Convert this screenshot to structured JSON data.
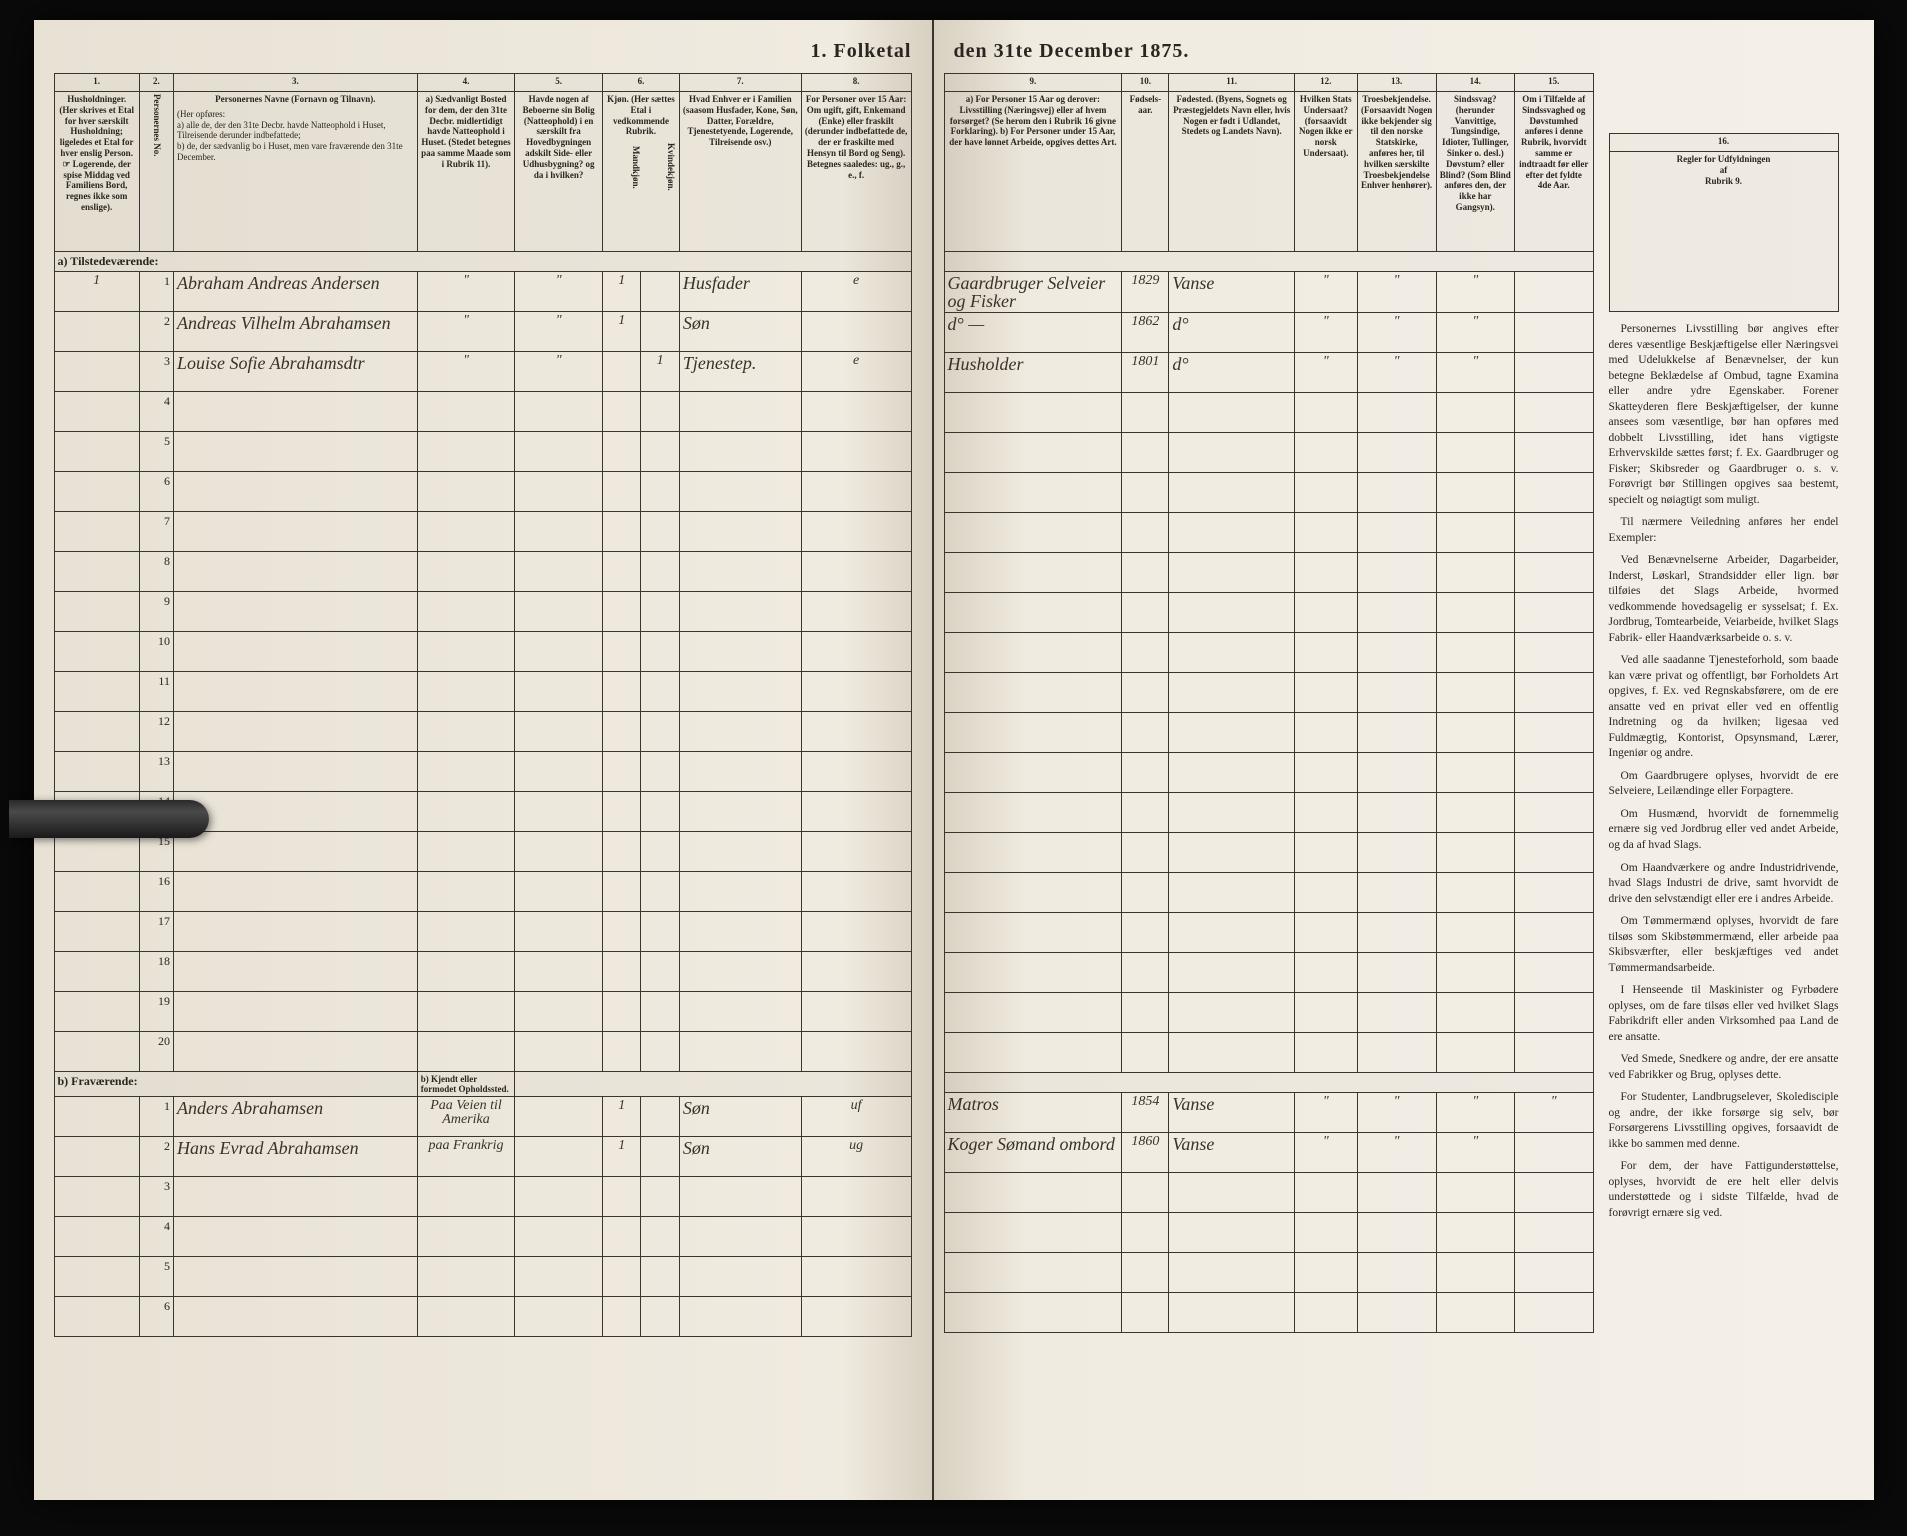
{
  "title_left": "1. Folketal",
  "title_right": "den 31te December 1875.",
  "left_page": {
    "col_numbers": [
      "1.",
      "2.",
      "3.",
      "4.",
      "5.",
      "6.",
      "7.",
      "8."
    ],
    "headers": {
      "c1": "Husholdninger.\n(Her skrives et Etal for hver særskilt Husholdning; ligeledes et Etal for hver enslig Person.\n☞ Logerende, der spise Middag ved Familiens Bord, regnes ikke som enslige).",
      "c2": "Personernes No.",
      "c3_title": "Personernes Navne (Fornavn og Tilnavn).",
      "c3_sub": "(Her opføres:\na) alle de, der den 31te Decbr. havde Natteophold i Huset, Tilreisende derunder indbefattede;\nb) de, der sædvanlig bo i Huset, men vare fraværende den 31te December.",
      "c4": "a) Sædvanligt Bosted for dem, der den 31te Decbr. midlertidigt havde Natteophold i Huset.\n(Stedet betegnes paa samme Maade som i Rubrik 11).",
      "c5": "Havde nogen af Beboerne sin Bolig (Natteophold) i en særskilt fra Hovedbygningen adskilt Side- eller Udhusbygning? og da i hvilken?",
      "c6": "Kjøn.\n(Her sættes Etal i vedkommende Rubrik.",
      "c6a": "Mandkjøn.",
      "c6b": "Kvindekjøn.",
      "c7": "Hvad Enhver er i Familien\n(saasom Husfader, Kone, Søn, Datter, Forældre, Tjenestetyende, Logerende, Tilreisende osv.)",
      "c8": "For Personer over 15 Aar: Om ugift, gift, Enkemand (Enke) eller fraskilt (derunder indbefattede de, der er fraskilte med Hensyn til Bord og Seng).\nBetegnes saaledes:\nug., g., e., f."
    },
    "section_a": "a) Tilstedeværende:",
    "section_b": "b) Fraværende:",
    "section_b_col4": "b) Kjendt eller formodet Opholdssted.",
    "rows_a": [
      {
        "hh": "1",
        "no": "1",
        "name": "Abraham Andreas Andersen",
        "c4": "\"",
        "c5": "\"",
        "m": "1",
        "f": "",
        "fam": "Husfader",
        "civ": "e"
      },
      {
        "hh": "",
        "no": "2",
        "name": "Andreas Vilhelm Abrahamsen",
        "c4": "\"",
        "c5": "\"",
        "m": "1",
        "f": "",
        "fam": "Søn",
        "civ": ""
      },
      {
        "hh": "",
        "no": "3",
        "name": "Louise Sofie Abrahamsdtr",
        "c4": "\"",
        "c5": "\"",
        "m": "",
        "f": "1",
        "fam": "Tjenestep.",
        "civ": "e"
      }
    ],
    "blank_rows_a": [
      4,
      5,
      6,
      7,
      8,
      9,
      10,
      11,
      12,
      13,
      14,
      15,
      16,
      17,
      18,
      19,
      20
    ],
    "rows_b": [
      {
        "hh": "",
        "no": "1",
        "name": "Anders Abrahamsen",
        "c4": "Paa Veien til Amerika",
        "c5": "",
        "m": "1",
        "f": "",
        "fam": "Søn",
        "civ": "uf"
      },
      {
        "hh": "",
        "no": "2",
        "name": "Hans Evrad Abrahamsen",
        "c4": "paa Frankrig",
        "c5": "",
        "m": "1",
        "f": "",
        "fam": "Søn",
        "civ": "ug"
      }
    ],
    "blank_rows_b": [
      3,
      4,
      5,
      6
    ]
  },
  "right_page": {
    "col_numbers": [
      "9.",
      "10.",
      "11.",
      "12.",
      "13.",
      "14.",
      "15.",
      "16."
    ],
    "headers": {
      "c9": "a) For Personer 15 Aar og derover: Livsstilling (Næringsvej) eller af hvem forsørget? (Se herom den i Rubrik 16 givne Forklaring).\nb) For Personer under 15 Aar, der have lønnet Arbeide, opgives dettes Art.",
      "c10": "Fødsels-aar.",
      "c11": "Fødested.\n(Byens, Sognets og Præstegjeldets Navn eller, hvis Nogen er født i Udlandet, Stedets og Landets Navn).",
      "c12": "Hvilken Stats Undersaat?\n(forsaavidt Nogen ikke er norsk Undersaat).",
      "c13": "Troesbekjendelse.\n(Forsaavidt Nogen ikke bekjender sig til den norske Statskirke, anføres her, til hvilken særskilte Troesbekjendelse Enhver henhører).",
      "c14": "Sindssvag? (herunder Vanvittige, Tungsindige, Idioter, Tullinger, Sinker o. desl.) Døvstum? eller Blind? (Som Blind anføres den, der ikke har Gangsyn).",
      "c15": "Om i Tilfælde af Sindssvaghed og Døvstumhed anføres i denne Rubrik, hvorvidt samme er indtraadt før eller efter det fyldte 4de Aar.",
      "c16": "Regler for Udfyldningen\naf\nRubrik 9."
    },
    "rows_a": [
      {
        "occ": "Gaardbruger Selveier og Fisker",
        "year": "1829",
        "place": "Vanse",
        "c12": "\"",
        "c13": "\"",
        "c14": "\"",
        "c15": ""
      },
      {
        "occ": "d° —",
        "year": "1862",
        "place": "d°",
        "c12": "\"",
        "c13": "\"",
        "c14": "\"",
        "c15": ""
      },
      {
        "occ": "Husholder",
        "year": "1801",
        "place": "d°",
        "c12": "\"",
        "c13": "\"",
        "c14": "\"",
        "c15": ""
      }
    ],
    "rows_b": [
      {
        "occ": "Matros",
        "year": "1854",
        "place": "Vanse",
        "c12": "\"",
        "c13": "\"",
        "c14": "\"",
        "c15": "\""
      },
      {
        "occ": "Koger Sømand ombord",
        "year": "1860",
        "place": "Vanse",
        "c12": "\"",
        "c13": "\"",
        "c14": "\"",
        "c15": ""
      }
    ],
    "instructions": {
      "head": "Regler for Udfyldningen",
      "sub": "af",
      "rubrik": "Rubrik 9.",
      "paras": [
        "Personernes Livsstilling bør angives efter deres væsentlige Beskjæftigelse eller Næringsvei med Udelukkelse af Benævnelser, der kun betegne Beklædelse af Ombud, tagne Examina eller andre ydre Egenskaber. Forener Skatteyderen flere Beskjæftigelser, der kunne ansees som væsentlige, bør han opføres med dobbelt Livsstilling, idet hans vigtigste Erhvervskilde sættes først; f. Ex. Gaardbruger og Fisker; Skibsreder og Gaardbruger o. s. v. Forøvrigt bør Stillingen opgives saa bestemt, specielt og nøiagtigt som muligt.",
        "Til nærmere Veiledning anføres her endel Exempler:",
        "Ved Benævnelserne Arbeider, Dagarbeider, Inderst, Løskarl, Strandsidder eller lign. bør tilføies det Slags Arbeide, hvormed vedkommende hovedsagelig er sysselsat; f. Ex. Jordbrug, Tomtearbeide, Veiarbeide, hvilket Slags Fabrik- eller Haandværksarbeide o. s. v.",
        "Ved alle saadanne Tjenesteforhold, som baade kan være privat og offentligt, bør Forholdets Art opgives, f. Ex. ved Regnskabsførere, om de ere ansatte ved en privat eller ved en offentlig Indretning og da hvilken; ligesaa ved Fuldmægtig, Kontorist, Opsynsmand, Lærer, Ingeniør og andre.",
        "Om Gaardbrugere oplyses, hvorvidt de ere Selveiere, Leilændinge eller Forpagtere.",
        "Om Husmænd, hvorvidt de fornemmelig ernære sig ved Jordbrug eller ved andet Arbeide, og da af hvad Slags.",
        "Om Haandværkere og andre Industridrivende, hvad Slags Industri de drive, samt hvorvidt de drive den selvstændigt eller ere i andres Arbeide.",
        "Om Tømmermænd oplyses, hvorvidt de fare tilsøs som Skibstømmermænd, eller arbeide paa Skibsværfter, eller beskjæftiges ved andet Tømmermandsarbeide.",
        "I Henseende til Maskinister og Fyrbødere oplyses, om de fare tilsøs eller ved hvilket Slags Fabrikdrift eller anden Virksomhed paa Land de ere ansatte.",
        "Ved Smede, Snedkere og andre, der ere ansatte ved Fabrikker og Brug, oplyses dette.",
        "For Studenter, Landbrugselever, Skoledisciple og andre, der ikke forsørge sig selv, bør Forsørgerens Livsstilling opgives, forsaavidt de ikke bo sammen med denne.",
        "For dem, der have Fattigunderstøttelse, oplyses, hvorvidt de ere helt eller delvis understøttede og i sidste Tilfælde, hvad de forøvrigt ernære sig ved."
      ]
    }
  },
  "colors": {
    "page_bg": "#f0ebe0",
    "ink": "#2a2520",
    "handwriting": "#3a3228",
    "border": "#3a3530"
  }
}
